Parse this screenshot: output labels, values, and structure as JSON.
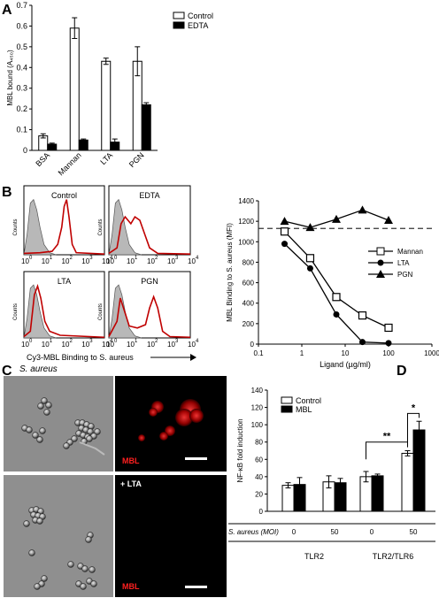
{
  "panel_labels": {
    "a": "A",
    "b": "B",
    "c": "C",
    "d": "D"
  },
  "chart_data": [
    {
      "type": "bar",
      "panel": "A",
      "ylabel": "MBL bound (A₄₅₀)",
      "ylim": [
        0,
        0.7
      ],
      "yticks": [
        "0",
        "0.1",
        "0.2",
        "0.3",
        "0.4",
        "0.5",
        "0.6",
        "0.7"
      ],
      "categories": [
        "BSA",
        "Mannan",
        "LTA",
        "PGN"
      ],
      "series": [
        {
          "name": "Control",
          "color": "#ffffff",
          "values": [
            0.07,
            0.59,
            0.43,
            0.43
          ],
          "errors": [
            0.01,
            0.05,
            0.015,
            0.07
          ]
        },
        {
          "name": "EDTA",
          "color": "#000000",
          "values": [
            0.03,
            0.05,
            0.04,
            0.22
          ],
          "errors": [
            0.005,
            0.005,
            0.015,
            0.01
          ]
        }
      ],
      "legend_position": "top-right"
    },
    {
      "type": "histogram",
      "panel": "B-left",
      "xlabel": "Cy3-MBL Binding to S. aureus",
      "ylabel": "Counts",
      "xtick_exponents": [
        "0",
        "1",
        "2",
        "3",
        "4"
      ],
      "xtick_base": "10",
      "panels": [
        "Control",
        "EDTA",
        "LTA",
        "PGN"
      ]
    },
    {
      "type": "line",
      "panel": "B-right",
      "xlabel": "Ligand (µg/ml)",
      "ylabel": "MBL Binding to S. aureus (MFI)",
      "x_scale": "log",
      "xlim": [
        0.1,
        1000
      ],
      "ylim": [
        0,
        1400
      ],
      "xticks": [
        "0.1",
        "1",
        "10",
        "100",
        "1000"
      ],
      "yticks": [
        "0",
        "200",
        "400",
        "600",
        "800",
        "1000",
        "1200",
        "1400"
      ],
      "reference_line": 1130,
      "series": [
        {
          "name": "Mannan",
          "marker": "square-open",
          "x": [
            0.4,
            1.56,
            6.25,
            25,
            100
          ],
          "y": [
            1100,
            840,
            460,
            280,
            160
          ]
        },
        {
          "name": "LTA",
          "marker": "circle-filled",
          "x": [
            0.4,
            1.56,
            6.25,
            25,
            100
          ],
          "y": [
            980,
            740,
            290,
            20,
            10
          ]
        },
        {
          "name": "PGN",
          "marker": "triangle-filled",
          "x": [
            0.4,
            1.56,
            6.25,
            25,
            100
          ],
          "y": [
            1200,
            1140,
            1220,
            1310,
            1210
          ]
        }
      ]
    },
    {
      "type": "bar",
      "panel": "D",
      "ylabel": "NF-κB fold induction",
      "ylim": [
        0,
        140
      ],
      "yticks": [
        "0",
        "20",
        "40",
        "60",
        "80",
        "100",
        "120",
        "140"
      ],
      "categories": [
        "0",
        "50",
        "0",
        "50"
      ],
      "x_row_label": "S. aureus (MOI)",
      "groups": [
        "TLR2",
        "TLR2/TLR6"
      ],
      "series": [
        {
          "name": "Control",
          "color": "#ffffff",
          "values": [
            30,
            34,
            40,
            67
          ],
          "errors": [
            3,
            7,
            6,
            3
          ]
        },
        {
          "name": "MBL",
          "color": "#000000",
          "values": [
            31,
            33,
            41,
            94
          ],
          "errors": [
            8,
            5,
            2,
            10
          ]
        }
      ],
      "significance": [
        "**",
        "*"
      ],
      "legend_position": "top-left"
    }
  ],
  "micro": {
    "title": "S. aureus",
    "label_mbl_top": "MBL",
    "label_mbl_bottom": "MBL",
    "label_lta": "+ LTA"
  }
}
